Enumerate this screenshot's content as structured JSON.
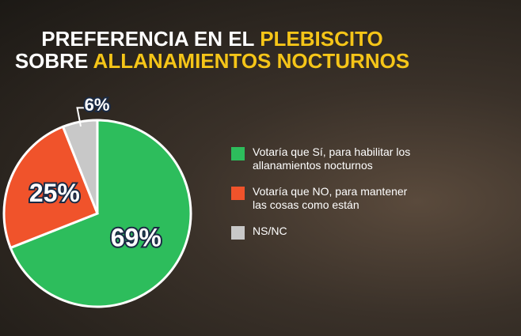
{
  "chart_data": {
    "type": "pie",
    "title": [
      [
        "PREFERENCIA EN EL ",
        "PLEBISCITO"
      ],
      [
        "SOBRE ",
        "ALLANAMIENTOS NOCTURNOS"
      ]
    ],
    "title_color": "#ffffff",
    "title_highlight_color": "#f5c518",
    "categories": [
      "Votaría que Sí, para habilitar los allanamientos nocturnos",
      "Votaría que NO, para mantener las cosas como están",
      "NS/NC"
    ],
    "values": [
      69,
      25,
      6
    ],
    "value_labels": [
      "69%",
      "25%",
      "6%"
    ],
    "colors": [
      "#2dbd5c",
      "#f0532b",
      "#c8c8c8"
    ],
    "legend": "right"
  }
}
